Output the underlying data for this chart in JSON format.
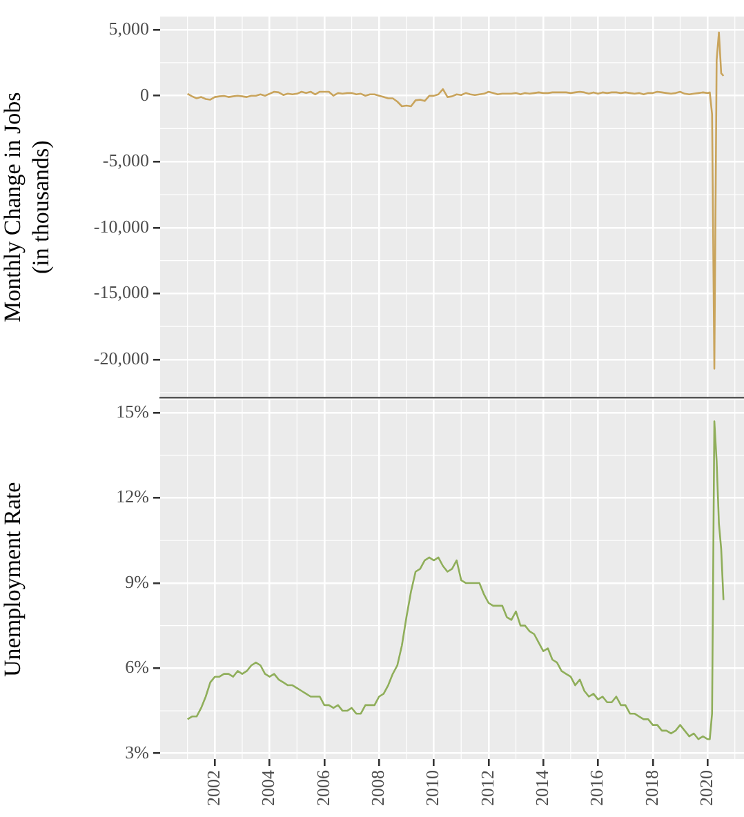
{
  "chart_data": [
    {
      "type": "line",
      "ylabel": "Monthly Change in Jobs\n(in thousands)",
      "xlim": [
        "2000-01",
        "2021-05"
      ],
      "ylim": [
        -22900,
        6000
      ],
      "yticks": [
        {
          "value": 5000,
          "label": "5,000"
        },
        0,
        {
          "value": -5000,
          "label": "-5,000"
        },
        {
          "value": -10000,
          "label": "-10,000"
        },
        {
          "value": -15000,
          "label": "-15,000"
        },
        {
          "value": -20000,
          "label": "-20,000"
        }
      ],
      "xticks": [
        "2002",
        "2004",
        "2006",
        "2008",
        "2010",
        "2012",
        "2014",
        "2016",
        "2018",
        "2020"
      ],
      "tick_labels": "y",
      "grid": true,
      "legend": false,
      "marker": "none",
      "x": [
        "2001-01",
        "2001-03",
        "2001-05",
        "2001-07",
        "2001-09",
        "2001-11",
        "2002-01",
        "2002-03",
        "2002-05",
        "2002-07",
        "2002-09",
        "2002-11",
        "2003-01",
        "2003-03",
        "2003-05",
        "2003-07",
        "2003-09",
        "2003-11",
        "2004-01",
        "2004-03",
        "2004-05",
        "2004-07",
        "2004-09",
        "2004-11",
        "2005-01",
        "2005-03",
        "2005-05",
        "2005-07",
        "2005-09",
        "2005-11",
        "2006-01",
        "2006-03",
        "2006-05",
        "2006-07",
        "2006-09",
        "2006-11",
        "2007-01",
        "2007-03",
        "2007-05",
        "2007-07",
        "2007-09",
        "2007-11",
        "2008-01",
        "2008-03",
        "2008-05",
        "2008-07",
        "2008-09",
        "2008-11",
        "2009-01",
        "2009-03",
        "2009-05",
        "2009-07",
        "2009-09",
        "2009-11",
        "2010-01",
        "2010-03",
        "2010-05",
        "2010-07",
        "2010-09",
        "2010-11",
        "2011-01",
        "2011-03",
        "2011-05",
        "2011-07",
        "2011-09",
        "2011-11",
        "2012-01",
        "2012-03",
        "2012-05",
        "2012-07",
        "2012-09",
        "2012-11",
        "2013-01",
        "2013-03",
        "2013-05",
        "2013-07",
        "2013-09",
        "2013-11",
        "2014-01",
        "2014-03",
        "2014-05",
        "2014-07",
        "2014-09",
        "2014-11",
        "2015-01",
        "2015-03",
        "2015-05",
        "2015-07",
        "2015-09",
        "2015-11",
        "2016-01",
        "2016-03",
        "2016-05",
        "2016-07",
        "2016-09",
        "2016-11",
        "2017-01",
        "2017-03",
        "2017-05",
        "2017-07",
        "2017-09",
        "2017-11",
        "2018-01",
        "2018-03",
        "2018-05",
        "2018-07",
        "2018-09",
        "2018-11",
        "2019-01",
        "2019-03",
        "2019-05",
        "2019-07",
        "2019-09",
        "2019-11",
        "2020-01",
        "2020-02",
        "2020-03",
        "2020-04",
        "2020-05",
        "2020-06",
        "2020-07",
        "2020-08"
      ],
      "series": [
        {
          "color": "#c9a45c",
          "values": [
            150,
            -50,
            -200,
            -100,
            -250,
            -300,
            -100,
            -50,
            -20,
            -100,
            -50,
            0,
            -50,
            -100,
            0,
            0,
            100,
            0,
            150,
            300,
            250,
            50,
            150,
            100,
            150,
            300,
            200,
            300,
            100,
            300,
            300,
            300,
            0,
            200,
            150,
            200,
            200,
            100,
            150,
            0,
            100,
            100,
            0,
            -100,
            -200,
            -200,
            -450,
            -800,
            -750,
            -800,
            -350,
            -300,
            -400,
            -10,
            -10,
            100,
            500,
            -100,
            -50,
            100,
            50,
            200,
            100,
            50,
            100,
            150,
            300,
            200,
            100,
            150,
            150,
            150,
            200,
            100,
            200,
            150,
            200,
            250,
            200,
            200,
            250,
            250,
            250,
            250,
            200,
            250,
            300,
            250,
            150,
            250,
            150,
            250,
            200,
            250,
            250,
            200,
            250,
            200,
            150,
            200,
            100,
            200,
            200,
            300,
            250,
            200,
            150,
            200,
            300,
            150,
            100,
            150,
            200,
            250,
            200,
            250,
            -1400,
            -20700,
            2700,
            4800,
            1700,
            1500
          ]
        }
      ]
    },
    {
      "type": "line",
      "ylabel": "Unemployment Rate",
      "xlim": [
        "2000-01",
        "2021-05"
      ],
      "ylim": [
        2.8,
        15.45
      ],
      "yticks": [
        {
          "value": 3,
          "label": "3%"
        },
        {
          "value": 6,
          "label": "6%"
        },
        {
          "value": 9,
          "label": "9%"
        },
        {
          "value": 12,
          "label": "12%"
        },
        {
          "value": 15,
          "label": "15%"
        }
      ],
      "xticks": [
        "2002",
        "2004",
        "2006",
        "2008",
        "2010",
        "2012",
        "2014",
        "2016",
        "2018",
        "2020"
      ],
      "grid": true,
      "legend": false,
      "marker": "none",
      "x": [
        "2001-01",
        "2001-03",
        "2001-05",
        "2001-07",
        "2001-09",
        "2001-11",
        "2002-01",
        "2002-03",
        "2002-05",
        "2002-07",
        "2002-09",
        "2002-11",
        "2003-01",
        "2003-03",
        "2003-05",
        "2003-07",
        "2003-09",
        "2003-11",
        "2004-01",
        "2004-03",
        "2004-05",
        "2004-07",
        "2004-09",
        "2004-11",
        "2005-01",
        "2005-03",
        "2005-05",
        "2005-07",
        "2005-09",
        "2005-11",
        "2006-01",
        "2006-03",
        "2006-05",
        "2006-07",
        "2006-09",
        "2006-11",
        "2007-01",
        "2007-03",
        "2007-05",
        "2007-07",
        "2007-09",
        "2007-11",
        "2008-01",
        "2008-03",
        "2008-05",
        "2008-07",
        "2008-09",
        "2008-11",
        "2009-01",
        "2009-03",
        "2009-05",
        "2009-07",
        "2009-09",
        "2009-11",
        "2010-01",
        "2010-03",
        "2010-05",
        "2010-07",
        "2010-09",
        "2010-11",
        "2011-01",
        "2011-03",
        "2011-05",
        "2011-07",
        "2011-09",
        "2011-11",
        "2012-01",
        "2012-03",
        "2012-05",
        "2012-07",
        "2012-09",
        "2012-11",
        "2013-01",
        "2013-03",
        "2013-05",
        "2013-07",
        "2013-09",
        "2013-11",
        "2014-01",
        "2014-03",
        "2014-05",
        "2014-07",
        "2014-09",
        "2014-11",
        "2015-01",
        "2015-03",
        "2015-05",
        "2015-07",
        "2015-09",
        "2015-11",
        "2016-01",
        "2016-03",
        "2016-05",
        "2016-07",
        "2016-09",
        "2016-11",
        "2017-01",
        "2017-03",
        "2017-05",
        "2017-07",
        "2017-09",
        "2017-11",
        "2018-01",
        "2018-03",
        "2018-05",
        "2018-07",
        "2018-09",
        "2018-11",
        "2019-01",
        "2019-03",
        "2019-05",
        "2019-07",
        "2019-09",
        "2019-11",
        "2020-01",
        "2020-02",
        "2020-03",
        "2020-04",
        "2020-05",
        "2020-06",
        "2020-07",
        "2020-08"
      ],
      "series": [
        {
          "color": "#8fae5a",
          "values": [
            4.2,
            4.3,
            4.3,
            4.6,
            5.0,
            5.5,
            5.7,
            5.7,
            5.8,
            5.8,
            5.7,
            5.9,
            5.8,
            5.9,
            6.1,
            6.2,
            6.1,
            5.8,
            5.7,
            5.8,
            5.6,
            5.5,
            5.4,
            5.4,
            5.3,
            5.2,
            5.1,
            5.0,
            5.0,
            5.0,
            4.7,
            4.7,
            4.6,
            4.7,
            4.5,
            4.5,
            4.6,
            4.4,
            4.4,
            4.7,
            4.7,
            4.7,
            5.0,
            5.1,
            5.4,
            5.8,
            6.1,
            6.8,
            7.8,
            8.7,
            9.4,
            9.5,
            9.8,
            9.9,
            9.8,
            9.9,
            9.6,
            9.4,
            9.5,
            9.8,
            9.1,
            9.0,
            9.0,
            9.0,
            9.0,
            8.6,
            8.3,
            8.2,
            8.2,
            8.2,
            7.8,
            7.7,
            8.0,
            7.5,
            7.5,
            7.3,
            7.2,
            6.9,
            6.6,
            6.7,
            6.3,
            6.2,
            5.9,
            5.8,
            5.7,
            5.4,
            5.6,
            5.2,
            5.0,
            5.1,
            4.9,
            5.0,
            4.8,
            4.8,
            5.0,
            4.7,
            4.7,
            4.4,
            4.4,
            4.3,
            4.2,
            4.2,
            4.0,
            4.0,
            3.8,
            3.8,
            3.7,
            3.8,
            4.0,
            3.8,
            3.6,
            3.7,
            3.5,
            3.6,
            3.5,
            3.5,
            4.4,
            14.7,
            13.3,
            11.1,
            10.2,
            8.4
          ]
        }
      ]
    }
  ]
}
